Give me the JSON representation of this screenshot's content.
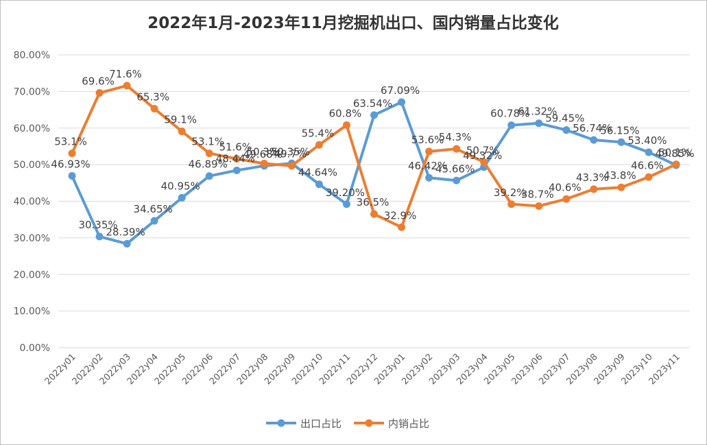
{
  "chart_data": {
    "type": "line",
    "title": "2022年1月-2023年11月挖掘机出口、国内销量占比变化",
    "xlabel": "",
    "ylabel": "",
    "ylim": [
      0,
      80
    ],
    "y_ticks": [
      "0.00%",
      "10.00%",
      "20.00%",
      "30.00%",
      "40.00%",
      "50.00%",
      "60.00%",
      "70.00%",
      "80.00%"
    ],
    "categories": [
      "2022y01",
      "2022y02",
      "2022y03",
      "2022y04",
      "2022y05",
      "2022y06",
      "2022y07",
      "2022y08",
      "2022y09",
      "2022y10",
      "2022y11",
      "2022y12",
      "2023y01",
      "2023y02",
      "2023y03",
      "2023y04",
      "2023y05",
      "2023y06",
      "2023y07",
      "2023y08",
      "2023y09",
      "2023y10",
      "2023y11"
    ],
    "legend_position": "bottom",
    "grid": true,
    "series": [
      {
        "name": "出口占比",
        "color": "#5b9bd5",
        "values": [
          46.93,
          30.35,
          28.39,
          34.65,
          40.95,
          46.89,
          48.44,
          49.68,
          50.35,
          44.64,
          39.2,
          63.54,
          67.09,
          46.42,
          45.66,
          49.32,
          60.78,
          61.32,
          59.45,
          56.74,
          56.15,
          53.4,
          49.85
        ],
        "labels": [
          "46.93%",
          "30.35%",
          "28.39%",
          "34.65%",
          "40.95%",
          "46.89%",
          "48.44%",
          "49.68%",
          "50.35%",
          "44.64%",
          "39.20%",
          "63.54%",
          "67.09%",
          "46.42%",
          "45.66%",
          "49.32%",
          "60.78%",
          "61.32%",
          "59.45%",
          "56.74%",
          "56.15%",
          "53.40%",
          "49.85%"
        ]
      },
      {
        "name": "内销占比",
        "color": "#ed7d31",
        "values": [
          53.1,
          69.6,
          71.6,
          65.3,
          59.1,
          53.1,
          51.6,
          50.3,
          49.7,
          55.4,
          60.8,
          36.5,
          32.9,
          53.6,
          54.3,
          50.7,
          39.2,
          38.7,
          40.6,
          43.3,
          43.8,
          46.6,
          50.1
        ],
        "labels": [
          "53.1%",
          "69.6%",
          "71.6%",
          "65.3%",
          "59.1%",
          "53.1%",
          "51.6%",
          "50.3%",
          "49.7%",
          "55.4%",
          "60.8%",
          "36.5%",
          "32.9%",
          "53.6%",
          "54.3%",
          "50.7%",
          "39.2%",
          "38.7%",
          "40.6%",
          "43.3%",
          "43.8%",
          "46.6%",
          "50.1%"
        ]
      }
    ]
  }
}
